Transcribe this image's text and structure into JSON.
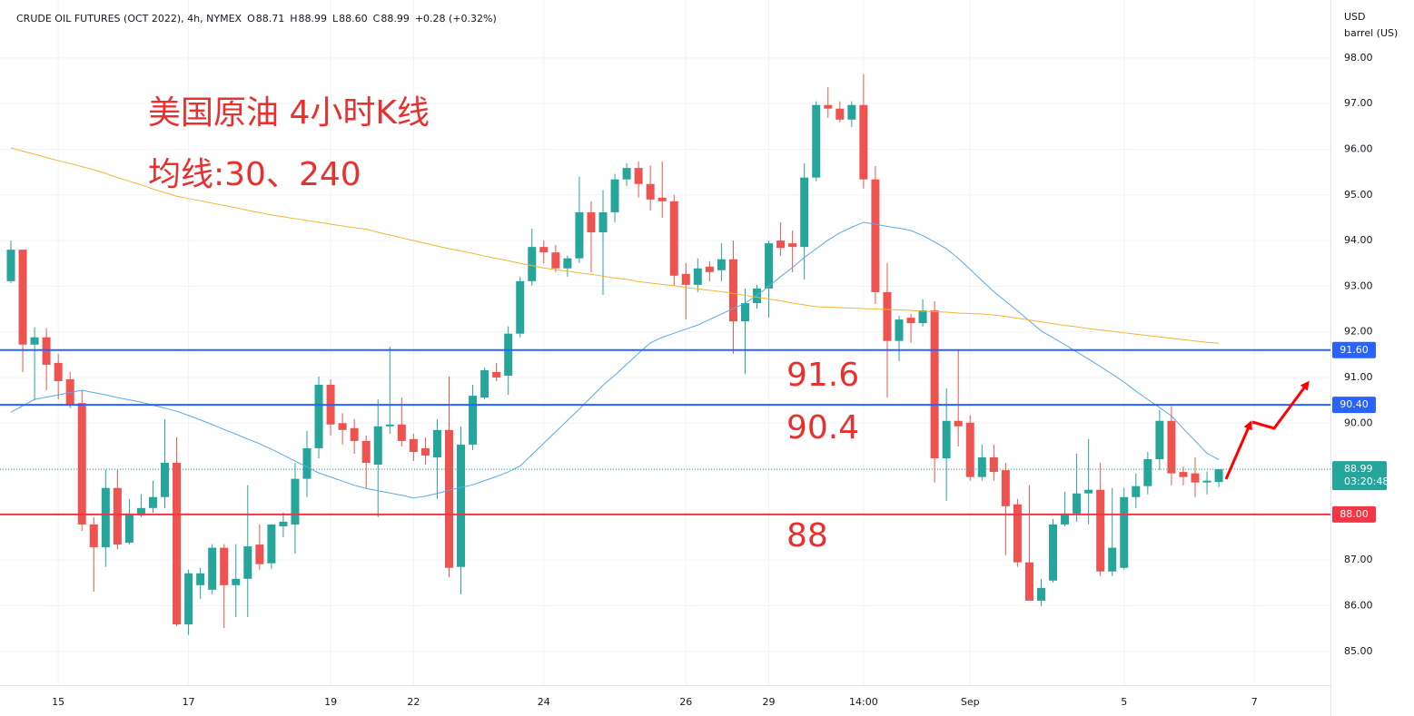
{
  "chart_data": {
    "type": "candlestick",
    "header": {
      "title": "CRUDE OIL FUTURES (OCT 2022), 4h, NYMEX",
      "stats": [
        {
          "key": "O",
          "text": "88.71"
        },
        {
          "key": "H",
          "text": "88.99"
        },
        {
          "key": "L",
          "text": "88.60"
        },
        {
          "key": "C",
          "text": "88.99"
        }
      ],
      "change": "+0.28 (+0.32%)"
    },
    "ylabel": [
      "USD",
      "barrel (US)"
    ],
    "annotations": [
      "美国原油 4小时K线",
      "均线:30、240",
      "91.6",
      "90.4",
      "88"
    ],
    "categories": [
      null,
      null,
      null,
      null,
      "15",
      null,
      null,
      null,
      null,
      null,
      null,
      null,
      null,
      null,
      null,
      "17",
      null,
      null,
      null,
      null,
      null,
      null,
      null,
      null,
      null,
      null,
      null,
      "19",
      null,
      null,
      null,
      null,
      null,
      null,
      "22",
      null,
      null,
      null,
      null,
      null,
      null,
      null,
      null,
      null,
      null,
      "24",
      null,
      null,
      null,
      null,
      null,
      null,
      null,
      null,
      null,
      null,
      null,
      "26",
      null,
      null,
      null,
      null,
      null,
      null,
      "29",
      null,
      null,
      null,
      null,
      null,
      null,
      null,
      "14:00",
      null,
      null,
      null,
      null,
      null,
      null,
      null,
      null,
      "Sep",
      null,
      null,
      null,
      null,
      null,
      null,
      null,
      null,
      null,
      null,
      null,
      null,
      "5",
      null,
      null,
      null,
      null,
      null,
      null,
      null,
      null,
      null,
      null,
      "7",
      null,
      null,
      null,
      null,
      null,
      null
    ],
    "open": [
      93.11,
      93.8,
      91.72,
      91.88,
      91.32,
      90.96,
      90.44,
      87.78,
      87.28,
      88.58,
      87.38,
      87.98,
      88.14,
      88.38,
      89.13,
      85.59,
      86.45,
      86.35,
      87.27,
      86.45,
      86.59,
      87.34,
      86.93,
      87.74,
      87.78,
      88.78,
      89.45,
      90.84,
      90.0,
      89.89,
      89.61,
      89.09,
      89.93,
      89.97,
      89.65,
      89.45,
      89.25,
      89.85,
      86.85,
      89.53,
      90.56,
      91.12,
      91.04,
      91.96,
      93.11,
      93.86,
      93.74,
      93.39,
      93.61,
      94.62,
      94.18,
      94.62,
      95.34,
      95.59,
      95.24,
      94.94,
      94.86,
      93.27,
      93.03,
      93.43,
      93.35,
      93.59,
      92.23,
      92.63,
      92.95,
      94.0,
      93.94,
      93.86,
      95.38,
      96.97,
      96.89,
      96.65,
      96.97,
      95.34,
      92.87,
      91.8,
      92.31,
      92.19,
      92.47,
      89.23,
      90.05,
      90.01,
      88.82,
      89.25,
      88.97,
      88.22,
      86.95,
      86.11,
      86.55,
      87.78,
      88.02,
      88.46,
      88.54,
      86.75,
      86.83,
      88.38,
      88.62,
      89.21,
      90.05,
      88.93,
      88.9,
      88.7,
      88.71,
      null,
      null,
      null,
      null,
      null,
      null,
      null,
      null,
      null
    ],
    "high": [
      94.0,
      93.8,
      92.1,
      92.08,
      91.52,
      91.12,
      90.72,
      87.94,
      88.98,
      88.98,
      88.34,
      88.44,
      88.74,
      90.09,
      89.69,
      86.79,
      86.83,
      87.35,
      87.35,
      87.35,
      88.64,
      87.78,
      87.78,
      88.04,
      89.13,
      89.83,
      91.02,
      90.96,
      90.22,
      90.09,
      89.73,
      90.52,
      91.68,
      90.56,
      89.77,
      89.69,
      90.09,
      91.02,
      89.93,
      90.84,
      91.22,
      91.32,
      92.12,
      93.21,
      94.26,
      94.0,
      93.9,
      93.67,
      95.4,
      94.86,
      95.1,
      95.46,
      95.69,
      95.73,
      95.64,
      95.73,
      95.0,
      93.51,
      93.61,
      93.55,
      93.94,
      94.0,
      92.95,
      93.03,
      94.0,
      94.4,
      94.22,
      95.69,
      97.05,
      97.36,
      97.05,
      97.05,
      97.64,
      95.63,
      93.51,
      92.35,
      92.39,
      92.71,
      92.67,
      90.76,
      91.62,
      90.17,
      89.53,
      89.53,
      89.13,
      88.34,
      88.64,
      86.59,
      87.9,
      88.5,
      89.33,
      89.65,
      89.13,
      88.58,
      88.58,
      88.9,
      89.37,
      90.29,
      90.37,
      89.05,
      89.25,
      88.94,
      88.99,
      null,
      null,
      null,
      null,
      null,
      null,
      null,
      null,
      null
    ],
    "low": [
      93.07,
      91.12,
      90.5,
      90.72,
      90.52,
      90.33,
      87.64,
      86.31,
      86.85,
      87.24,
      87.34,
      87.94,
      88.04,
      88.14,
      85.55,
      85.36,
      86.15,
      86.25,
      85.51,
      85.75,
      85.75,
      86.79,
      86.81,
      87.5,
      87.14,
      88.38,
      89.23,
      89.73,
      89.53,
      89.33,
      88.58,
      87.94,
      89.77,
      89.49,
      89.17,
      89.09,
      88.34,
      86.63,
      86.25,
      89.41,
      90.52,
      90.92,
      90.62,
      91.88,
      93.01,
      93.5,
      93.31,
      93.21,
      93.51,
      93.31,
      92.81,
      94.4,
      95.2,
      94.94,
      94.66,
      94.5,
      93.01,
      92.27,
      92.87,
      93.11,
      93.11,
      91.52,
      91.08,
      92.51,
      92.31,
      93.67,
      93.31,
      93.15,
      95.3,
      96.69,
      96.59,
      96.49,
      95.14,
      92.61,
      90.56,
      91.36,
      91.76,
      92.11,
      88.7,
      88.3,
      89.49,
      88.74,
      88.74,
      88.74,
      87.11,
      86.85,
      86.11,
      85.99,
      86.51,
      87.74,
      87.84,
      87.78,
      86.65,
      86.65,
      86.79,
      88.14,
      88.44,
      88.97,
      88.64,
      88.64,
      88.38,
      88.44,
      88.6,
      null,
      null,
      null,
      null,
      null,
      null,
      null,
      null,
      null
    ],
    "close": [
      93.8,
      91.72,
      91.88,
      91.28,
      90.92,
      90.4,
      87.78,
      87.28,
      88.58,
      87.34,
      88.02,
      88.14,
      88.38,
      89.13,
      85.59,
      86.71,
      86.71,
      87.27,
      86.45,
      86.59,
      87.3,
      86.91,
      87.78,
      87.84,
      88.78,
      89.45,
      90.84,
      89.97,
      89.85,
      89.61,
      89.13,
      89.93,
      89.97,
      89.61,
      89.37,
      89.29,
      89.85,
      86.83,
      89.53,
      90.6,
      91.16,
      91.0,
      91.96,
      93.11,
      93.86,
      93.74,
      93.39,
      93.61,
      94.62,
      94.18,
      94.62,
      95.34,
      95.59,
      95.24,
      94.9,
      94.86,
      93.23,
      93.03,
      93.39,
      93.31,
      93.59,
      92.23,
      92.63,
      92.95,
      93.94,
      93.84,
      93.86,
      95.38,
      96.97,
      96.89,
      96.65,
      96.97,
      95.34,
      92.87,
      91.8,
      92.27,
      92.19,
      92.47,
      89.23,
      90.05,
      89.93,
      88.82,
      89.25,
      88.93,
      88.18,
      86.95,
      86.11,
      86.39,
      87.78,
      88.02,
      88.46,
      88.54,
      86.75,
      87.27,
      88.38,
      88.62,
      89.21,
      90.05,
      88.9,
      88.82,
      88.7,
      88.74,
      88.99,
      null,
      null,
      null,
      null,
      null,
      null,
      null,
      null,
      null
    ],
    "up_color": "#26a69a",
    "down_color": "#ef5350",
    "series": [
      {
        "color": "#5ba8e8",
        "values": [
          90.24,
          90.38,
          90.52,
          90.57,
          90.62,
          90.67,
          90.72,
          90.67,
          90.62,
          90.56,
          90.51,
          90.46,
          90.39,
          90.33,
          90.26,
          90.17,
          90.07,
          89.97,
          89.86,
          89.76,
          89.65,
          89.55,
          89.43,
          89.3,
          89.17,
          89.04,
          88.91,
          88.82,
          88.73,
          88.64,
          88.57,
          88.52,
          88.47,
          88.42,
          88.36,
          88.4,
          88.46,
          88.53,
          88.59,
          88.65,
          88.74,
          88.83,
          88.93,
          89.06,
          89.31,
          89.56,
          89.81,
          90.06,
          90.31,
          90.57,
          90.83,
          91.05,
          91.29,
          91.53,
          91.76,
          91.88,
          91.97,
          92.06,
          92.15,
          92.27,
          92.39,
          92.51,
          92.63,
          92.8,
          93.0,
          93.21,
          93.41,
          93.63,
          93.82,
          94.01,
          94.17,
          94.29,
          94.4,
          94.36,
          94.31,
          94.27,
          94.22,
          94.11,
          93.97,
          93.82,
          93.61,
          93.37,
          93.12,
          92.88,
          92.67,
          92.46,
          92.24,
          92.02,
          91.87,
          91.72,
          91.56,
          91.4,
          91.24,
          91.07,
          90.9,
          90.7,
          90.52,
          90.34,
          90.16,
          89.88,
          89.61,
          89.34,
          89.2,
          null,
          null,
          null,
          null,
          null,
          null,
          null,
          null,
          null
        ]
      },
      {
        "color": "#f2b632",
        "values": [
          96.03,
          95.96,
          95.89,
          95.82,
          95.75,
          95.69,
          95.62,
          95.55,
          95.47,
          95.38,
          95.3,
          95.22,
          95.13,
          95.05,
          94.97,
          94.92,
          94.87,
          94.82,
          94.77,
          94.72,
          94.66,
          94.61,
          94.56,
          94.52,
          94.48,
          94.44,
          94.4,
          94.36,
          94.32,
          94.28,
          94.25,
          94.18,
          94.12,
          94.06,
          94.0,
          93.94,
          93.88,
          93.82,
          93.77,
          93.72,
          93.66,
          93.61,
          93.56,
          93.5,
          93.45,
          93.4,
          93.36,
          93.33,
          93.29,
          93.26,
          93.22,
          93.18,
          93.15,
          93.1,
          93.07,
          93.04,
          93.01,
          92.97,
          92.94,
          92.91,
          92.88,
          92.84,
          92.8,
          92.76,
          92.72,
          92.68,
          92.63,
          92.59,
          92.55,
          92.54,
          92.53,
          92.52,
          92.51,
          92.5,
          92.49,
          92.48,
          92.47,
          92.45,
          92.44,
          92.43,
          92.41,
          92.4,
          92.39,
          92.37,
          92.34,
          92.3,
          92.26,
          92.22,
          92.18,
          92.14,
          92.11,
          92.07,
          92.04,
          92.01,
          91.98,
          91.95,
          91.92,
          91.89,
          91.86,
          91.83,
          91.8,
          91.77,
          91.75,
          null,
          null,
          null,
          null,
          null,
          null,
          null,
          null,
          null
        ]
      }
    ],
    "hlines": [
      {
        "value": 91.6,
        "label": "91.60",
        "color": "#2962ff"
      },
      {
        "value": 90.4,
        "label": "90.40",
        "color": "#2962ff"
      },
      {
        "value": 88.0,
        "label": "88.00",
        "color": "#f23645"
      }
    ],
    "last": {
      "value": 88.99,
      "label": "88.99",
      "countdown": "03:20:48",
      "color": "#26a69a"
    },
    "ylim": [
      84.26,
      99.27
    ],
    "yticks": [
      {
        "value": 85,
        "label": "85.00"
      },
      {
        "value": 86,
        "label": "86.00"
      },
      {
        "value": 87,
        "label": "87.00"
      },
      {
        "value": 88,
        "label": "88.00"
      },
      {
        "value": 89,
        "label": "89.00"
      },
      {
        "value": 90,
        "label": "90.00"
      },
      {
        "value": 91,
        "label": "91.00"
      },
      {
        "value": 92,
        "label": "92.00"
      },
      {
        "value": 93,
        "label": "93.00"
      },
      {
        "value": 94,
        "label": "94.00"
      },
      {
        "value": 95,
        "label": "95.00"
      },
      {
        "value": 96,
        "label": "96.00"
      },
      {
        "value": 97,
        "label": "97.00"
      },
      {
        "value": 98,
        "label": "98.00"
      }
    ],
    "grid": true
  }
}
